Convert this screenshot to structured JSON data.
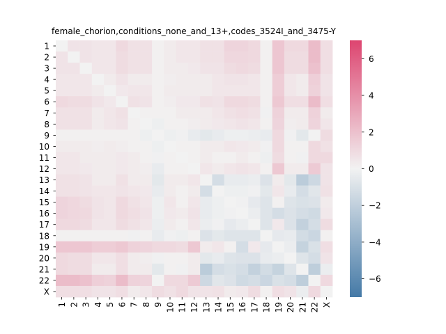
{
  "chart_data": {
    "type": "heatmap",
    "title": "female_chorion,conditions_none_and_13+,codes_3524I_and_3475-Y",
    "xlabel": "",
    "ylabel": "",
    "row_labels": [
      "1",
      "2",
      "3",
      "4",
      "5",
      "6",
      "7",
      "8",
      "9",
      "10",
      "11",
      "12",
      "13",
      "14",
      "15",
      "16",
      "17",
      "18",
      "19",
      "20",
      "21",
      "22",
      "X"
    ],
    "col_labels": [
      "1",
      "2",
      "3",
      "4",
      "5",
      "6",
      "7",
      "8",
      "9",
      "10",
      "11",
      "12",
      "13",
      "14",
      "15",
      "16",
      "17",
      "18",
      "19",
      "20",
      "21",
      "22",
      "X"
    ],
    "values": [
      [
        0.0,
        0.6,
        0.6,
        0.5,
        0.5,
        1.0,
        0.7,
        0.7,
        0.1,
        0.3,
        0.5,
        0.5,
        0.7,
        0.7,
        1.2,
        1.2,
        1.0,
        0.1,
        1.8,
        1.0,
        1.0,
        2.2,
        0.8
      ],
      [
        0.6,
        0.0,
        0.6,
        0.5,
        0.5,
        0.9,
        0.7,
        0.7,
        0.1,
        0.3,
        0.5,
        0.5,
        0.7,
        0.7,
        1.1,
        1.1,
        1.0,
        0.1,
        1.8,
        0.9,
        0.9,
        2.2,
        0.8
      ],
      [
        0.6,
        0.6,
        0.0,
        0.5,
        0.5,
        0.9,
        0.7,
        0.7,
        0.1,
        0.3,
        0.3,
        0.4,
        0.6,
        0.6,
        0.9,
        1.0,
        0.9,
        0.1,
        1.8,
        0.9,
        0.9,
        2.0,
        0.8
      ],
      [
        0.5,
        0.5,
        0.5,
        0.0,
        0.3,
        0.6,
        0.3,
        0.3,
        0.1,
        0.2,
        0.3,
        0.3,
        0.3,
        0.5,
        0.6,
        0.6,
        0.5,
        0.1,
        1.5,
        0.5,
        0.3,
        1.4,
        0.6
      ],
      [
        0.5,
        0.5,
        0.5,
        0.3,
        0.0,
        0.4,
        0.5,
        0.5,
        0.1,
        0.3,
        0.3,
        0.3,
        0.3,
        0.5,
        0.5,
        0.5,
        0.5,
        0.1,
        1.5,
        0.5,
        0.3,
        1.3,
        0.6
      ],
      [
        1.0,
        0.9,
        0.9,
        0.6,
        0.4,
        0.0,
        0.7,
        0.6,
        0.1,
        0.2,
        0.4,
        0.4,
        0.7,
        0.6,
        1.0,
        1.0,
        0.9,
        0.1,
        1.7,
        0.8,
        0.8,
        2.2,
        0.8
      ],
      [
        0.7,
        0.7,
        0.7,
        0.3,
        0.5,
        0.7,
        0.0,
        0.1,
        0.1,
        0.1,
        0.3,
        0.3,
        0.3,
        0.5,
        0.7,
        0.8,
        0.7,
        -0.1,
        1.3,
        0.3,
        0.3,
        1.3,
        0.3
      ],
      [
        0.7,
        0.7,
        0.7,
        0.3,
        0.5,
        0.6,
        0.1,
        0.0,
        -0.2,
        0.1,
        0.1,
        0.2,
        0.3,
        0.4,
        0.5,
        0.6,
        0.5,
        0.1,
        1.2,
        0.2,
        0.3,
        1.2,
        0.5
      ],
      [
        0.1,
        0.1,
        0.1,
        0.1,
        0.1,
        0.1,
        0.1,
        -0.2,
        0.0,
        -0.2,
        -0.1,
        -0.4,
        -0.6,
        -0.4,
        -0.2,
        -0.2,
        -0.3,
        -0.4,
        1.0,
        -0.1,
        -0.6,
        0.0,
        0.9
      ],
      [
        0.3,
        0.3,
        0.3,
        0.2,
        0.3,
        0.2,
        0.1,
        0.1,
        -0.2,
        0.0,
        0.1,
        0.1,
        0.3,
        0.3,
        0.5,
        0.4,
        0.3,
        -0.1,
        1.0,
        0.1,
        0.1,
        1.0,
        0.7
      ],
      [
        0.5,
        0.5,
        0.3,
        0.3,
        0.3,
        0.4,
        0.3,
        0.1,
        -0.1,
        0.1,
        0.0,
        0.1,
        0.3,
        0.1,
        0.1,
        0.3,
        0.1,
        -0.2,
        0.9,
        0.1,
        -0.1,
        1.0,
        1.0
      ],
      [
        0.5,
        0.5,
        0.4,
        0.3,
        0.3,
        0.4,
        0.3,
        0.2,
        -0.4,
        0.1,
        0.1,
        0.0,
        0.5,
        0.3,
        0.5,
        0.6,
        0.5,
        0.1,
        1.7,
        0.3,
        0.3,
        1.6,
        0.6
      ],
      [
        0.7,
        0.7,
        0.6,
        0.3,
        0.3,
        0.7,
        0.3,
        0.3,
        -0.6,
        0.3,
        0.3,
        0.5,
        0.0,
        -1.2,
        -0.4,
        -0.4,
        -0.3,
        -0.9,
        0.3,
        -0.6,
        -2.2,
        -1.5,
        0.6
      ],
      [
        0.7,
        0.7,
        0.6,
        0.5,
        0.5,
        0.6,
        0.5,
        0.4,
        -0.4,
        0.3,
        0.1,
        0.3,
        -1.2,
        0.0,
        -0.2,
        -0.2,
        -0.1,
        -0.6,
        0.5,
        -0.4,
        -1.2,
        -0.7,
        0.7
      ],
      [
        1.2,
        1.1,
        0.9,
        0.6,
        0.5,
        1.0,
        0.7,
        0.5,
        -0.2,
        0.5,
        0.1,
        0.5,
        -0.4,
        -0.2,
        0.0,
        -0.1,
        -0.5,
        -0.8,
        0.1,
        -0.8,
        -1.0,
        -0.9,
        0.3
      ],
      [
        1.2,
        1.1,
        1.0,
        0.6,
        0.5,
        1.0,
        0.8,
        0.6,
        -0.2,
        0.4,
        0.3,
        0.6,
        -0.4,
        -0.2,
        -0.1,
        0.0,
        -0.3,
        -0.8,
        -1.2,
        -0.9,
        -1.2,
        -1.4,
        0.4
      ],
      [
        1.0,
        1.0,
        0.9,
        0.5,
        0.5,
        0.9,
        0.7,
        0.5,
        -0.3,
        0.3,
        0.1,
        0.5,
        -0.3,
        -0.1,
        -0.5,
        -0.3,
        0.0,
        -0.8,
        0.4,
        -0.9,
        -1.9,
        -1.2,
        0.9
      ],
      [
        0.1,
        0.1,
        0.1,
        0.1,
        0.1,
        0.1,
        -0.1,
        0.1,
        -0.4,
        -0.1,
        -0.2,
        0.1,
        -0.9,
        -0.6,
        -0.8,
        -0.8,
        -0.8,
        0.0,
        -0.5,
        -0.4,
        -1.3,
        -1.6,
        0.1
      ],
      [
        1.8,
        1.8,
        1.8,
        1.5,
        1.5,
        1.7,
        1.3,
        1.2,
        1.0,
        1.0,
        0.9,
        1.7,
        0.3,
        0.5,
        0.1,
        -1.2,
        0.4,
        -0.5,
        0.0,
        -0.3,
        -1.8,
        -1.0,
        0.8
      ],
      [
        1.0,
        0.9,
        0.9,
        0.5,
        0.5,
        0.8,
        0.3,
        0.2,
        -0.1,
        0.1,
        0.1,
        0.3,
        -0.6,
        -0.4,
        -0.8,
        -0.9,
        -0.9,
        -0.4,
        -0.3,
        0.0,
        -0.8,
        -1.2,
        0.6
      ],
      [
        1.0,
        0.9,
        0.9,
        0.3,
        0.3,
        0.8,
        0.3,
        0.3,
        -0.6,
        0.1,
        -0.1,
        0.3,
        -2.2,
        -1.2,
        -1.0,
        -1.2,
        -1.9,
        -1.3,
        -1.8,
        -0.8,
        0.0,
        -2.1,
        -0.3
      ],
      [
        2.2,
        2.2,
        2.0,
        1.4,
        1.3,
        2.2,
        1.3,
        1.2,
        0.0,
        1.0,
        1.0,
        1.6,
        -1.5,
        -0.7,
        -0.9,
        -1.4,
        -1.2,
        -1.6,
        -1.0,
        -1.2,
        -2.1,
        0.0,
        1.0
      ],
      [
        0.8,
        0.8,
        0.8,
        0.6,
        0.6,
        0.8,
        0.3,
        0.5,
        0.9,
        0.7,
        1.0,
        0.6,
        0.6,
        0.7,
        0.3,
        0.4,
        0.9,
        0.1,
        0.8,
        0.6,
        -0.3,
        1.0,
        0.0
      ]
    ],
    "vmin": -7,
    "vmax": 7,
    "colorbar_ticks": [
      -6,
      -4,
      -2,
      0,
      2,
      4,
      6
    ],
    "colormap": {
      "negative": "#4479a6",
      "center": "#f2f2f2",
      "positive": "#dd4570"
    },
    "grid": false,
    "legend": "colorbar-right"
  }
}
